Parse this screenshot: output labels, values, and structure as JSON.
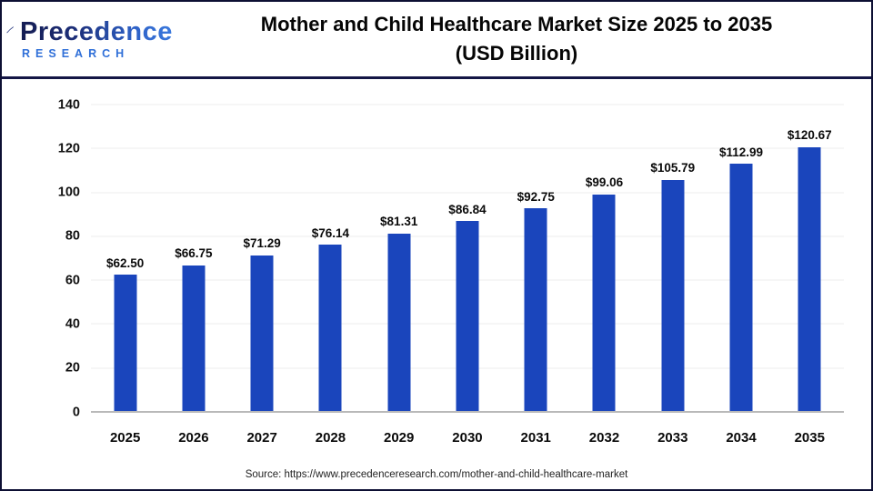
{
  "logo": {
    "name": "Precedence",
    "sub": "RESEARCH"
  },
  "header": {
    "title_line1": "Mother and Child Healthcare Market Size 2025 to 2035",
    "title_line2": "(USD Billion)"
  },
  "footer": {
    "source": "Source: https://www.precedenceresearch.com/mother-and-child-healthcare-market"
  },
  "chart_data": {
    "type": "bar",
    "title": "Mother and Child Healthcare Market Size 2025 to 2035 (USD Billion)",
    "categories": [
      "2025",
      "2026",
      "2027",
      "2028",
      "2029",
      "2030",
      "2031",
      "2032",
      "2033",
      "2034",
      "2035"
    ],
    "values": [
      62.5,
      66.75,
      71.29,
      76.14,
      81.31,
      86.84,
      92.75,
      99.06,
      105.79,
      112.99,
      120.67
    ],
    "labels": [
      "$62.50",
      "$66.75",
      "$71.29",
      "$76.14",
      "$81.31",
      "$86.84",
      "$92.75",
      "$99.06",
      "$105.79",
      "$112.99",
      "$120.67"
    ],
    "xlabel": "",
    "ylabel": "",
    "ylim": [
      0,
      140
    ],
    "yticks": [
      0,
      20,
      40,
      60,
      80,
      100,
      120,
      140
    ],
    "grid": true,
    "legend": false,
    "bar_color": "#1a45bc",
    "gridline_color": "#ededed",
    "baseline_color": "#b9b9b9"
  }
}
